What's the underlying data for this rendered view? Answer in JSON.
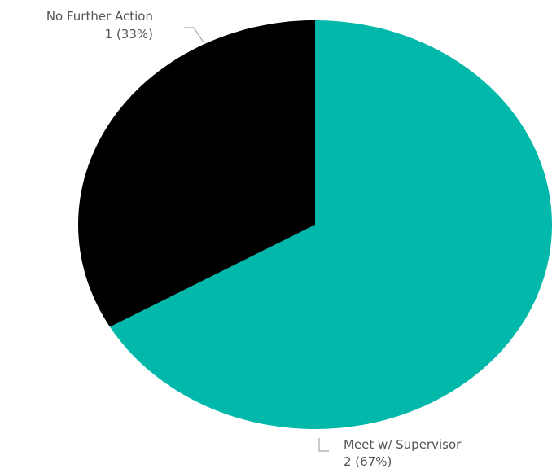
{
  "chart_data": {
    "type": "pie",
    "categories": [
      "Meet w/ Supervisor",
      "No Further Action"
    ],
    "values": [
      2,
      1
    ],
    "percents": [
      67,
      33
    ],
    "colors": [
      "#01b8aa",
      "#000000"
    ],
    "legend": "none",
    "data_labels": [
      {
        "name": "Meet w/ Supervisor",
        "value": "2 (67%)"
      },
      {
        "name": "No Further Action",
        "value": "1 (33%)"
      }
    ]
  }
}
